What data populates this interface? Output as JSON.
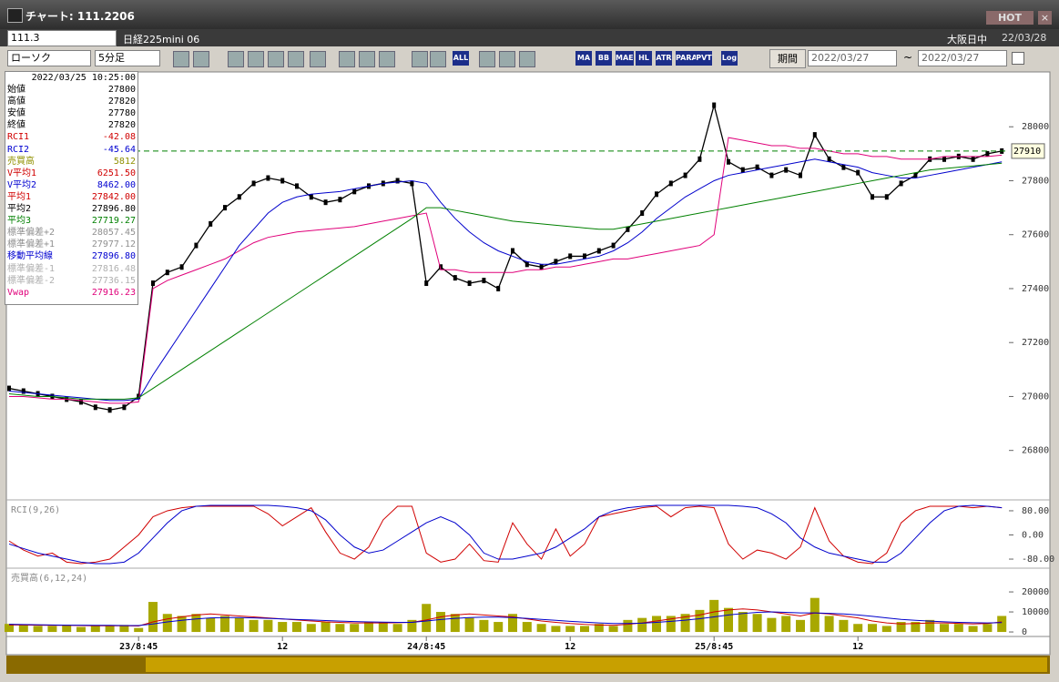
{
  "window": {
    "title": "チャート: 111.2206",
    "hot": "HOT"
  },
  "toolbar": {
    "symbol": "111.3",
    "name": "日経225mini 06",
    "session": "大阪日中",
    "date": "22/03/28",
    "chart_type": "ローソク",
    "interval": "5分足",
    "period": "期間",
    "from": "2022/03/27",
    "tilde": "~",
    "to": "2022/03/27",
    "icons": [
      "ALL",
      "MA",
      "BB",
      "MAE",
      "HL",
      "ATR",
      "PARA",
      "PVT",
      "Log"
    ]
  },
  "info": {
    "timestamp": "2022/03/25 10:25:00",
    "rows": [
      {
        "label": "始値",
        "value": "27800",
        "color": "#000000"
      },
      {
        "label": "高値",
        "value": "27820",
        "color": "#000000"
      },
      {
        "label": "安値",
        "value": "27780",
        "color": "#000000"
      },
      {
        "label": "終値",
        "value": "27820",
        "color": "#000000"
      },
      {
        "label": "RCI1",
        "value": "-42.08",
        "color": "#d00000"
      },
      {
        "label": "RCI2",
        "value": "-45.64",
        "color": "#0000d0"
      },
      {
        "label": "売買高",
        "value": "5812",
        "color": "#909000"
      },
      {
        "label": "V平均1",
        "value": "6251.50",
        "color": "#d00000"
      },
      {
        "label": "V平均2",
        "value": "8462.00",
        "color": "#0000d0"
      },
      {
        "label": "平均1",
        "value": "27842.00",
        "color": "#d00000"
      },
      {
        "label": "平均2",
        "value": "27896.80",
        "color": "#000000"
      },
      {
        "label": "平均3",
        "value": "27719.27",
        "color": "#008000"
      },
      {
        "label": "標準偏差+2",
        "value": "28057.45",
        "color": "#909090"
      },
      {
        "label": "標準偏差+1",
        "value": "27977.12",
        "color": "#909090"
      },
      {
        "label": "移動平均線",
        "value": "27896.80",
        "color": "#0000d0"
      },
      {
        "label": "標準偏差-1",
        "value": "27816.48",
        "color": "#b0b0b0"
      },
      {
        "label": "標準偏差-2",
        "value": "27736.15",
        "color": "#b0b0b0"
      },
      {
        "label": "Vwap",
        "value": "27916.23",
        "color": "#e0007a"
      }
    ]
  },
  "chart_data": [
    {
      "type": "line",
      "ylim": [
        26620,
        28200
      ],
      "yticks": [
        28000,
        27800,
        27600,
        27400,
        27200,
        27000,
        26800
      ],
      "last_price": 27910,
      "last_color": "#008000",
      "series": [
        {
          "color": "#000000",
          "values": [
            27030,
            27020,
            27010,
            27000,
            26990,
            26980,
            26960,
            26950,
            26960,
            27000,
            27420,
            27460,
            27480,
            27560,
            27640,
            27700,
            27740,
            27790,
            27810,
            27800,
            27780,
            27740,
            27720,
            27730,
            27760,
            27780,
            27790,
            27800,
            27790,
            27420,
            27480,
            27440,
            27420,
            27430,
            27400,
            27540,
            27490,
            27480,
            27500,
            27520,
            27520,
            27540,
            27560,
            27620,
            27680,
            27750,
            27790,
            27820,
            27880,
            28080,
            27870,
            27840,
            27850,
            27820,
            27840,
            27820,
            27970,
            27880,
            27850,
            27830,
            27740,
            27740,
            27790,
            27820,
            27880,
            27880,
            27890,
            27880,
            27900,
            27910
          ]
        },
        {
          "color": "#e0007a",
          "values": [
            27000,
            27000,
            26995,
            26990,
            26990,
            26985,
            26980,
            26975,
            26975,
            26980,
            27400,
            27430,
            27450,
            27470,
            27490,
            27510,
            27540,
            27570,
            27590,
            27600,
            27610,
            27615,
            27620,
            27625,
            27630,
            27640,
            27650,
            27660,
            27670,
            27680,
            27470,
            27470,
            27460,
            27460,
            27460,
            27460,
            27470,
            27470,
            27480,
            27480,
            27490,
            27500,
            27510,
            27510,
            27520,
            27530,
            27540,
            27550,
            27560,
            27600,
            27960,
            27950,
            27940,
            27930,
            27930,
            27920,
            27920,
            27910,
            27900,
            27900,
            27890,
            27890,
            27880,
            27880,
            27880,
            27890,
            27890,
            27890,
            27890,
            27895
          ]
        },
        {
          "color": "#0000cc",
          "values": [
            27020,
            27015,
            27010,
            27005,
            27000,
            26995,
            26990,
            26985,
            26985,
            26990,
            27080,
            27160,
            27240,
            27320,
            27400,
            27480,
            27560,
            27620,
            27680,
            27720,
            27740,
            27750,
            27755,
            27760,
            27770,
            27780,
            27790,
            27795,
            27800,
            27790,
            27720,
            27660,
            27610,
            27570,
            27540,
            27520,
            27500,
            27490,
            27490,
            27500,
            27510,
            27520,
            27540,
            27570,
            27610,
            27660,
            27700,
            27740,
            27770,
            27800,
            27820,
            27830,
            27840,
            27850,
            27860,
            27870,
            27880,
            27870,
            27860,
            27850,
            27830,
            27820,
            27810,
            27810,
            27820,
            27830,
            27840,
            27850,
            27860,
            27870
          ]
        },
        {
          "color": "#008000",
          "values": [
            27010,
            27005,
            27000,
            27000,
            26995,
            26990,
            26990,
            26990,
            26990,
            26995,
            27030,
            27065,
            27100,
            27135,
            27170,
            27205,
            27240,
            27275,
            27310,
            27345,
            27380,
            27415,
            27450,
            27485,
            27520,
            27555,
            27590,
            27625,
            27660,
            27700,
            27700,
            27690,
            27680,
            27670,
            27660,
            27650,
            27645,
            27640,
            27635,
            27630,
            27625,
            27620,
            27620,
            27630,
            27640,
            27650,
            27660,
            27670,
            27680,
            27690,
            27700,
            27710,
            27720,
            27730,
            27740,
            27750,
            27760,
            27770,
            27780,
            27790,
            27800,
            27810,
            27820,
            27830,
            27840,
            27845,
            27850,
            27855,
            27860,
            27865
          ]
        }
      ]
    },
    {
      "type": "line",
      "title": "RCI(9,26)",
      "ylim": [
        -104,
        113
      ],
      "yticks": [
        {
          "value": 80,
          "label": "80.00"
        },
        {
          "value": 0,
          "label": "0.00"
        },
        {
          "value": -80,
          "label": "-80.00"
        }
      ],
      "series": [
        {
          "color": "#d00000",
          "values": [
            -20,
            -50,
            -70,
            -60,
            -90,
            -95,
            -90,
            -80,
            -40,
            0,
            60,
            80,
            90,
            95,
            95,
            95,
            95,
            95,
            70,
            30,
            60,
            90,
            10,
            -60,
            -80,
            -40,
            50,
            95,
            95,
            -60,
            -90,
            -80,
            -30,
            -85,
            -90,
            40,
            -30,
            -80,
            20,
            -70,
            -30,
            60,
            70,
            80,
            90,
            95,
            60,
            90,
            95,
            90,
            -30,
            -80,
            -50,
            -60,
            -80,
            -40,
            90,
            -20,
            -70,
            -90,
            -95,
            -60,
            40,
            80,
            95,
            95,
            95,
            90,
            95,
            90
          ]
        },
        {
          "color": "#0000cc",
          "values": [
            -30,
            -45,
            -60,
            -70,
            -80,
            -90,
            -95,
            -95,
            -90,
            -60,
            -10,
            40,
            80,
            95,
            98,
            98,
            98,
            98,
            98,
            95,
            90,
            80,
            50,
            0,
            -40,
            -60,
            -50,
            -20,
            10,
            40,
            60,
            40,
            0,
            -60,
            -80,
            -80,
            -70,
            -60,
            -40,
            -10,
            20,
            60,
            80,
            90,
            95,
            98,
            98,
            98,
            98,
            98,
            98,
            95,
            90,
            70,
            40,
            -10,
            -40,
            -60,
            -70,
            -80,
            -90,
            -90,
            -60,
            -10,
            40,
            80,
            95,
            98,
            95,
            90
          ]
        }
      ]
    },
    {
      "type": "bar",
      "title": "売買高(6,12,24)",
      "ylim": [
        -1800,
        31400
      ],
      "yticks": [
        20000,
        10000,
        0
      ],
      "color": "#a8a800",
      "categories": [
        null,
        null,
        null,
        null,
        null,
        null,
        null,
        null,
        null,
        "23/8:45",
        null,
        null,
        null,
        null,
        null,
        null,
        null,
        null,
        null,
        "12",
        null,
        null,
        null,
        null,
        null,
        null,
        null,
        null,
        null,
        "24/8:45",
        null,
        null,
        null,
        null,
        null,
        null,
        null,
        null,
        null,
        "12",
        null,
        null,
        null,
        null,
        null,
        null,
        null,
        null,
        null,
        "25/8:45",
        null,
        null,
        null,
        null,
        null,
        null,
        null,
        null,
        null,
        "12",
        null,
        null,
        null,
        null,
        null,
        null,
        null,
        null,
        null,
        null
      ],
      "values": [
        4000,
        3500,
        3000,
        3000,
        3500,
        2500,
        3000,
        3000,
        3500,
        2000,
        15000,
        9000,
        8000,
        9000,
        7000,
        8000,
        7000,
        6000,
        6000,
        5000,
        5000,
        4000,
        5000,
        4000,
        4000,
        5000,
        5000,
        4000,
        6000,
        14000,
        10000,
        9000,
        7000,
        6000,
        5000,
        9000,
        5000,
        4000,
        3000,
        3000,
        3000,
        4000,
        3000,
        6000,
        7000,
        8000,
        8000,
        9000,
        11000,
        16000,
        12000,
        10000,
        9000,
        7000,
        8000,
        6000,
        17000,
        8000,
        6000,
        4000,
        4000,
        3000,
        5000,
        5000,
        6000,
        4000,
        4000,
        3000,
        4000,
        8000
      ],
      "series": [
        {
          "color": "#d00000",
          "values": [
            3500,
            3500,
            3400,
            3300,
            3300,
            3200,
            3100,
            3100,
            3100,
            3000,
            5000,
            6500,
            7500,
            8500,
            9000,
            8500,
            8000,
            7500,
            7000,
            6500,
            6000,
            5500,
            5000,
            4800,
            4500,
            4500,
            4500,
            4600,
            4800,
            6000,
            7500,
            8500,
            9000,
            8500,
            8000,
            7500,
            6500,
            5500,
            4800,
            4200,
            3800,
            3500,
            3300,
            3800,
            4500,
            5500,
            6500,
            7500,
            8500,
            10000,
            11000,
            11500,
            11000,
            10000,
            9000,
            8000,
            9500,
            9000,
            8000,
            7000,
            5500,
            4500,
            4000,
            4200,
            4500,
            4500,
            4300,
            4000,
            4200,
            5000
          ]
        },
        {
          "color": "#0000cc",
          "values": [
            3800,
            3700,
            3600,
            3500,
            3400,
            3400,
            3300,
            3300,
            3200,
            3200,
            4000,
            5000,
            5800,
            6500,
            7000,
            7200,
            7200,
            7000,
            6800,
            6500,
            6200,
            6000,
            5700,
            5400,
            5200,
            5000,
            4900,
            4800,
            4800,
            5500,
            6200,
            6800,
            7200,
            7400,
            7400,
            7200,
            6800,
            6300,
            5800,
            5300,
            4900,
            4500,
            4200,
            4200,
            4400,
            4800,
            5300,
            5900,
            6600,
            7500,
            8500,
            9200,
            9800,
            10000,
            9800,
            9500,
            9500,
            9300,
            9000,
            8500,
            7800,
            7000,
            6300,
            5800,
            5400,
            5100,
            4800,
            4600,
            4500,
            4700
          ]
        }
      ]
    }
  ]
}
